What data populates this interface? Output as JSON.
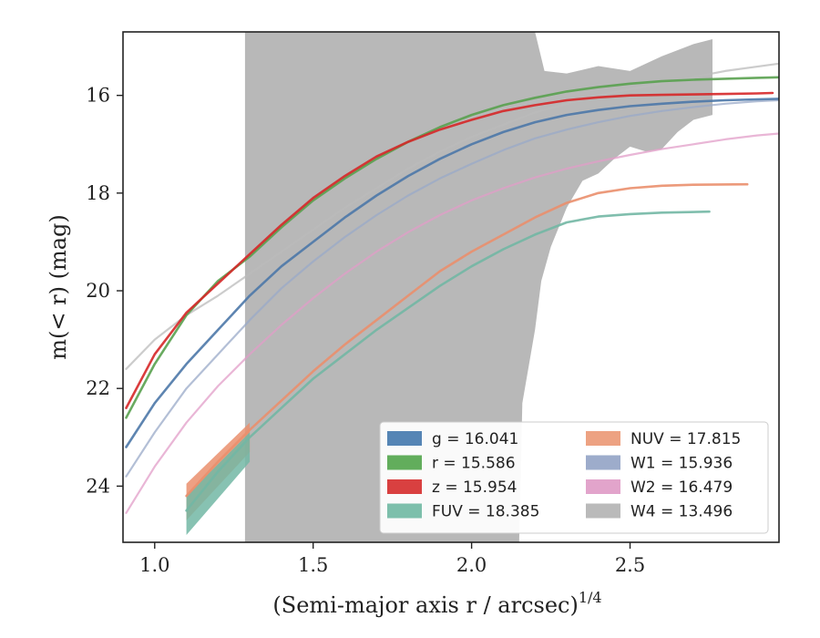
{
  "chart_data": {
    "type": "line",
    "xlabel": "(Semi-major axis r / arcsec)",
    "xlabel_superscript": "1/4",
    "ylabel": "m(< r) (mag)",
    "xlim": [
      0.9,
      2.97
    ],
    "ylim": [
      25.15,
      14.7
    ],
    "y_inverted": true,
    "grid": false,
    "legend_placement": "lower-right",
    "x_ticks": [
      1.0,
      1.5,
      2.0,
      2.5
    ],
    "x_tick_labels": [
      "1.0",
      "1.5",
      "2.0",
      "2.5"
    ],
    "y_ticks": [
      16,
      18,
      20,
      22,
      24
    ],
    "y_tick_labels": [
      "16",
      "18",
      "20",
      "22",
      "24"
    ],
    "series": [
      {
        "band": "g",
        "legend": "g = 16.041",
        "color": "#4c78a8",
        "x": [
          0.91,
          1.0,
          1.1,
          1.2,
          1.3,
          1.4,
          1.5,
          1.6,
          1.7,
          1.8,
          1.9,
          2.0,
          2.1,
          2.2,
          2.3,
          2.4,
          2.5,
          2.6,
          2.7,
          2.8,
          2.9,
          2.97
        ],
        "y": [
          23.2,
          22.3,
          21.5,
          20.8,
          20.1,
          19.5,
          19.0,
          18.5,
          18.05,
          17.65,
          17.3,
          17.0,
          16.75,
          16.55,
          16.4,
          16.3,
          16.22,
          16.17,
          16.13,
          16.1,
          16.08,
          16.07
        ]
      },
      {
        "band": "r",
        "legend": "r = 15.586",
        "color": "#59a14f",
        "x": [
          0.91,
          1.0,
          1.1,
          1.2,
          1.3,
          1.4,
          1.5,
          1.6,
          1.7,
          1.8,
          1.9,
          2.0,
          2.1,
          2.2,
          2.3,
          2.4,
          2.5,
          2.6,
          2.7,
          2.8,
          2.9,
          2.97
        ],
        "y": [
          22.6,
          21.5,
          20.5,
          19.8,
          19.3,
          18.7,
          18.15,
          17.7,
          17.3,
          16.95,
          16.65,
          16.4,
          16.2,
          16.05,
          15.92,
          15.83,
          15.76,
          15.71,
          15.68,
          15.66,
          15.64,
          15.63
        ]
      },
      {
        "band": "z",
        "legend": "z = 15.954",
        "color": "#d62728",
        "x": [
          0.91,
          1.0,
          1.1,
          1.2,
          1.3,
          1.4,
          1.5,
          1.6,
          1.7,
          1.8,
          1.9,
          2.0,
          2.1,
          2.2,
          2.3,
          2.4,
          2.5,
          2.6,
          2.7,
          2.8,
          2.9,
          2.95
        ],
        "y": [
          22.4,
          21.3,
          20.45,
          19.85,
          19.25,
          18.65,
          18.1,
          17.65,
          17.25,
          16.95,
          16.7,
          16.5,
          16.32,
          16.2,
          16.1,
          16.04,
          16.0,
          15.99,
          15.98,
          15.97,
          15.96,
          15.95
        ]
      },
      {
        "band": "FUV",
        "legend": "FUV = 18.385",
        "color": "#72b7a4",
        "x": [
          1.1,
          1.2,
          1.3,
          1.4,
          1.5,
          1.6,
          1.7,
          1.8,
          1.9,
          2.0,
          2.1,
          2.2,
          2.3,
          2.4,
          2.5,
          2.6,
          2.75
        ],
        "y": [
          24.5,
          23.7,
          23.0,
          22.4,
          21.8,
          21.3,
          20.8,
          20.35,
          19.9,
          19.5,
          19.15,
          18.85,
          18.6,
          18.48,
          18.43,
          18.4,
          18.38
        ]
      },
      {
        "band": "NUV",
        "legend": "NUV = 17.815",
        "color": "#ea8f6d",
        "x": [
          1.1,
          1.2,
          1.3,
          1.4,
          1.5,
          1.6,
          1.7,
          1.8,
          1.9,
          2.0,
          2.1,
          2.2,
          2.3,
          2.4,
          2.5,
          2.6,
          2.7,
          2.87
        ],
        "y": [
          24.2,
          23.5,
          22.85,
          22.25,
          21.65,
          21.1,
          20.6,
          20.1,
          19.6,
          19.2,
          18.85,
          18.5,
          18.2,
          18.0,
          17.9,
          17.85,
          17.83,
          17.82
        ]
      },
      {
        "band": "W1",
        "legend": "W1 = 15.936",
        "color": "#9aaac8",
        "x": [
          0.91,
          1.0,
          1.1,
          1.2,
          1.3,
          1.4,
          1.5,
          1.6,
          1.7,
          1.8,
          1.9,
          2.0,
          2.1,
          2.2,
          2.3,
          2.4,
          2.5,
          2.6,
          2.7,
          2.8,
          2.9,
          2.97
        ],
        "y": [
          23.8,
          22.9,
          22.0,
          21.3,
          20.6,
          19.95,
          19.4,
          18.9,
          18.45,
          18.05,
          17.7,
          17.4,
          17.12,
          16.88,
          16.7,
          16.55,
          16.42,
          16.32,
          16.24,
          16.17,
          16.12,
          16.1
        ]
      },
      {
        "band": "W2",
        "legend": "W2 = 16.479",
        "color": "#e29ec8",
        "x": [
          0.91,
          1.0,
          1.1,
          1.2,
          1.3,
          1.4,
          1.5,
          1.6,
          1.7,
          1.8,
          1.9,
          2.0,
          2.1,
          2.2,
          2.3,
          2.4,
          2.5,
          2.6,
          2.7,
          2.8,
          2.9,
          2.97
        ],
        "y": [
          24.55,
          23.6,
          22.7,
          21.95,
          21.3,
          20.7,
          20.15,
          19.65,
          19.2,
          18.8,
          18.45,
          18.15,
          17.9,
          17.68,
          17.5,
          17.35,
          17.22,
          17.1,
          17.0,
          16.9,
          16.82,
          16.78
        ]
      },
      {
        "band": "W4",
        "legend": "W4 = 13.496",
        "color": "#bbbbbb",
        "x": [
          0.91,
          1.0,
          1.1,
          1.2,
          1.3,
          1.4,
          1.5,
          1.6,
          1.7,
          1.8,
          1.9,
          2.0,
          2.2,
          2.4,
          2.6,
          2.8,
          2.97
        ],
        "y": [
          21.6,
          21.0,
          20.5,
          20.1,
          19.65,
          19.2,
          18.75,
          18.3,
          17.9,
          17.5,
          17.15,
          16.85,
          16.35,
          16.0,
          15.75,
          15.5,
          15.35
        ]
      }
    ],
    "bands": [
      {
        "band": "W4",
        "kind": "uncertainty",
        "color": "#b8b8b8",
        "x": [
          1.285,
          1.285,
          1.9,
          1.93,
          1.95,
          2.0,
          2.05,
          2.1,
          2.15,
          2.2,
          2.23,
          2.3,
          2.4,
          2.5,
          2.6,
          2.7,
          2.76,
          2.76,
          2.7,
          2.65,
          2.6,
          2.55,
          2.5,
          2.45,
          2.4,
          2.35,
          2.3,
          2.25,
          2.22,
          2.2,
          2.16,
          2.15,
          2.1,
          2.0,
          1.9,
          1.8,
          1.7,
          1.6,
          1.5,
          1.4,
          1.3,
          1.285
        ],
        "y": [
          25.15,
          14.7,
          14.7,
          14.6,
          14.7,
          14.7,
          14.7,
          14.7,
          14.7,
          14.7,
          15.5,
          15.55,
          15.4,
          15.5,
          15.2,
          14.95,
          14.85,
          16.4,
          16.5,
          16.75,
          17.1,
          17.15,
          17.05,
          17.3,
          17.6,
          17.75,
          18.3,
          19.1,
          19.8,
          20.8,
          22.3,
          25.15,
          25.15,
          25.15,
          25.15,
          25.15,
          25.15,
          25.15,
          25.15,
          25.15,
          25.15,
          25.15
        ]
      },
      {
        "band": "NUV",
        "kind": "uncertainty",
        "color": "#ea8f6d",
        "x": [
          1.1,
          1.3,
          1.3,
          1.1
        ],
        "y": [
          23.95,
          22.7,
          23.3,
          24.7
        ]
      },
      {
        "band": "FUV",
        "kind": "uncertainty",
        "color": "#72b7a4",
        "x": [
          1.1,
          1.3,
          1.3,
          1.1
        ],
        "y": [
          24.2,
          22.9,
          23.5,
          25.0
        ]
      }
    ],
    "legend": [
      {
        "band": "g",
        "label": "g = 16.041",
        "color": "#5585b5"
      },
      {
        "band": "r",
        "label": "r = 15.586",
        "color": "#62ad5c"
      },
      {
        "band": "z",
        "label": "z = 15.954",
        "color": "#d94040"
      },
      {
        "band": "FUV",
        "label": "FUV = 18.385",
        "color": "#7dbfab"
      },
      {
        "band": "NUV",
        "label": "NUV = 17.815",
        "color": "#eda282"
      },
      {
        "band": "W1",
        "label": "W1 = 15.936",
        "color": "#9daccb"
      },
      {
        "band": "W2",
        "label": "W2 = 16.479",
        "color": "#e2a4cb"
      },
      {
        "band": "W4",
        "label": "W4 = 13.496",
        "color": "#bababa"
      }
    ]
  }
}
